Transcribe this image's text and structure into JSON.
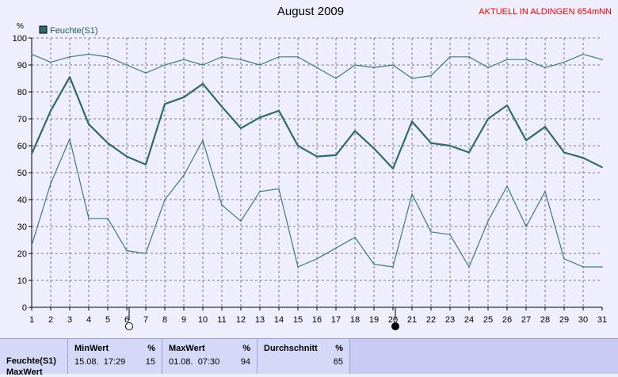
{
  "title": "August 2009",
  "subtitle": "AKTUELL IN ALDINGEN 654mNN",
  "chart_data": {
    "type": "line",
    "title": "August 2009",
    "ylabel": "%",
    "ylim": [
      0,
      100
    ],
    "yticks": [
      "0",
      "10",
      "20",
      "30",
      "40",
      "50",
      "60",
      "70",
      "80",
      "90",
      "100"
    ],
    "xlim": [
      1,
      31
    ],
    "categories": [
      "1",
      "2",
      "3",
      "4",
      "5",
      "6",
      "7",
      "8",
      "9",
      "10",
      "11",
      "12",
      "13",
      "14",
      "15",
      "16",
      "17",
      "18",
      "19",
      "20",
      "21",
      "22",
      "23",
      "24",
      "25",
      "26",
      "27",
      "28",
      "29",
      "30",
      "31"
    ],
    "legend": {
      "label": "Feuchte(S1)",
      "position": "top-left"
    },
    "grid": true,
    "series": [
      {
        "name": "Feuchte(S1)",
        "role": "average",
        "color": "#2f6b6b",
        "values": [
          57,
          73,
          85.5,
          68,
          61,
          56,
          53,
          75.5,
          78,
          83,
          74.5,
          66.5,
          70.5,
          73,
          60,
          56,
          56.5,
          65.5,
          59,
          51.5,
          69,
          61,
          60,
          57.5,
          70,
          75,
          62,
          67,
          57.5,
          55.5,
          52
        ]
      },
      {
        "name": "",
        "role": "max",
        "color": "#3c7c7c",
        "values": [
          94,
          91,
          93,
          94,
          93,
          90,
          87,
          90,
          92,
          90,
          93,
          92,
          90,
          93,
          93,
          89,
          85,
          90,
          89,
          90,
          85,
          86,
          93,
          93,
          89,
          92,
          92,
          89,
          91,
          94,
          92
        ]
      },
      {
        "name": "",
        "role": "min",
        "color": "#3c7c7c",
        "values": [
          23,
          46,
          62.5,
          33,
          33,
          21,
          20,
          40,
          49,
          62,
          38,
          32,
          43,
          44,
          15,
          18,
          22,
          26,
          16,
          15,
          42,
          28,
          27,
          15,
          32,
          45,
          30,
          43,
          18,
          15,
          15
        ]
      }
    ],
    "moon_markers": [
      {
        "day": 6,
        "phase": "full-moon"
      },
      {
        "day": 20,
        "phase": "new-moon"
      }
    ]
  },
  "footer": {
    "sensor_label": "Feuchte(S1)",
    "sensor_label_cut": "MaxWert",
    "min": {
      "head": "MinWert",
      "unit": "%",
      "datetime": "15.08.  17:29",
      "value": "15"
    },
    "max": {
      "head": "MaxWert",
      "unit": "%",
      "datetime": "01.08.  07:30",
      "value": "94"
    },
    "avg": {
      "head": "Durchschnitt",
      "unit": "%",
      "value": "65"
    }
  }
}
